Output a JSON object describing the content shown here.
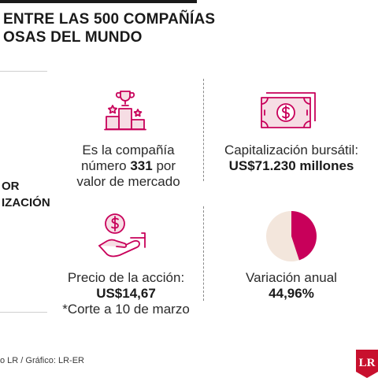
{
  "header": {
    "title_line1": "ENTRE LAS 500 COMPAÑÍAS",
    "title_line2": "OSAS DEL MUNDO"
  },
  "side": {
    "line1": "OR",
    "line2": "IZACIÓN"
  },
  "ranking": {
    "line1": "Es la compañía",
    "line2_prefix": "número",
    "line2_value": "331",
    "line2_suffix": "por",
    "line3": "valor de mercado",
    "icon": "podium-trophy-icon"
  },
  "market_cap": {
    "label": "Capitalización bursátil:",
    "value": "US$71.230 millones",
    "icon": "banknote-dollar-icon"
  },
  "share_price": {
    "label": "Precio de la acción:",
    "value": "US$14,67",
    "note": "*Corte a 10 de marzo",
    "icon": "hand-coin-icon"
  },
  "annual_change": {
    "label": "Variación anual",
    "value": "44,96%",
    "fraction": 0.4496,
    "icon": "pie-chart-icon"
  },
  "footer": {
    "source": "o LR / Gráfico: LR-ER"
  },
  "logo": {
    "text": "LR"
  },
  "colors": {
    "accent": "#c8005a",
    "icon_fill": "#f6dde4",
    "pie_base": "#f3e6dc",
    "dark": "#1a1a1a"
  }
}
